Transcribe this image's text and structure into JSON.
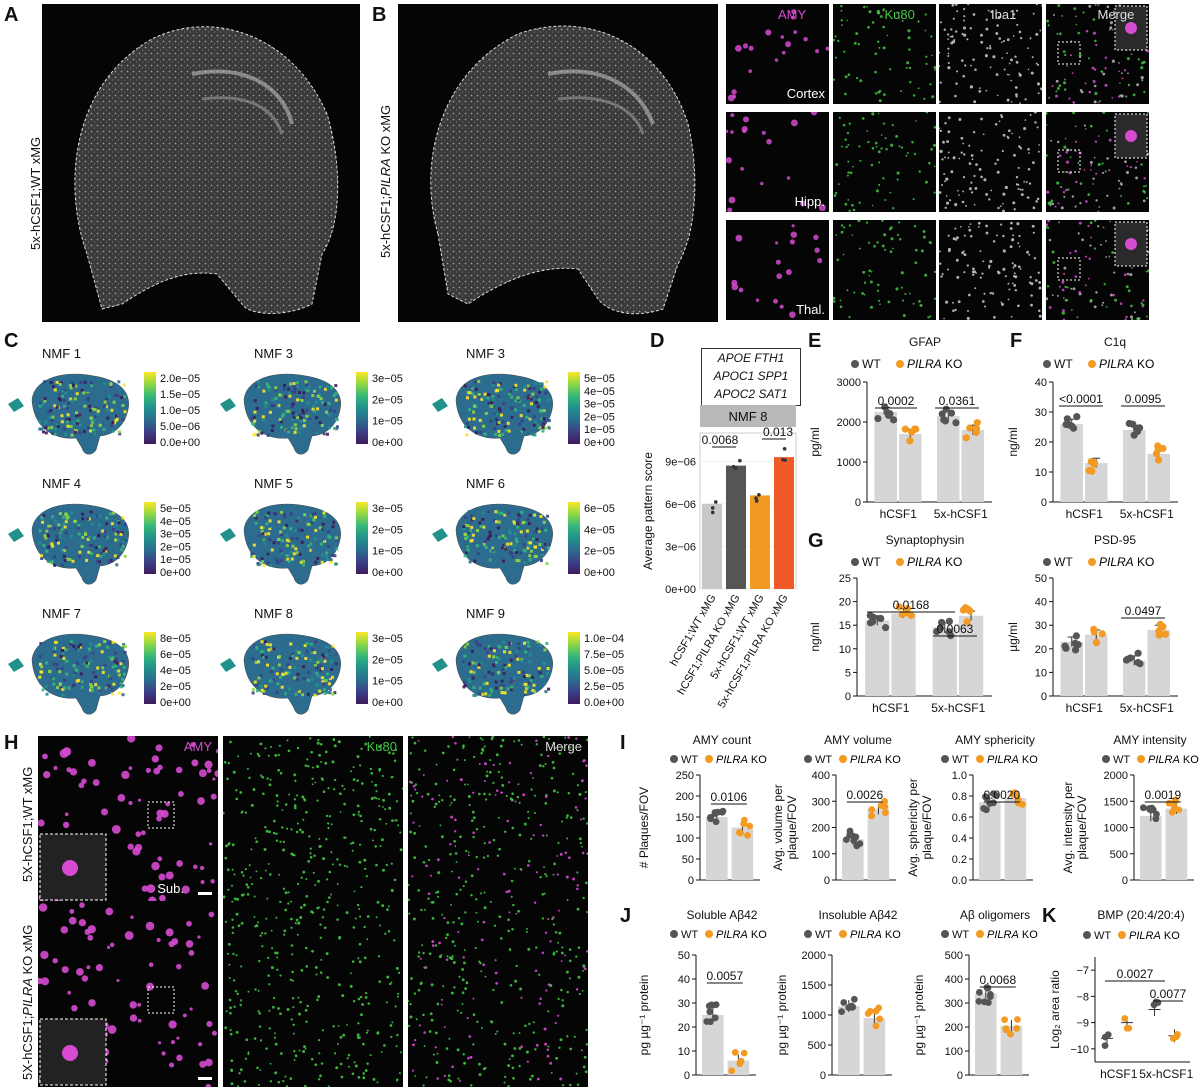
{
  "panels": {
    "A": {
      "label": "A",
      "ylabel": "5x-hCSF1;WT xMG"
    },
    "B": {
      "label": "B",
      "ylabel_pre": "5x-hCSF1;",
      "ylabel_it": "PILRA",
      "ylabel_post": " KO xMG",
      "channels": [
        "AMY",
        "Ku80",
        "Iba1",
        "Merge"
      ],
      "regions": [
        "Cortex",
        "Hipp.",
        "Thal."
      ]
    },
    "C": {
      "label": "C",
      "maps": [
        {
          "title": "NMF 1",
          "ticks": [
            "2.0e−05",
            "1.5e−05",
            "1.0e−05",
            "5.0e−06",
            "0.0e+00"
          ]
        },
        {
          "title": "NMF 3",
          "ticks": [
            "3e−05",
            "2e−05",
            "1e−05",
            "0e+00"
          ]
        },
        {
          "title": "NMF 3",
          "ticks": [
            "5e−05",
            "4e−05",
            "3e−05",
            "2e−05",
            "1e−05",
            "0e+00"
          ]
        },
        {
          "title": "NMF 4",
          "ticks": [
            "5e−05",
            "4e−05",
            "3e−05",
            "2e−05",
            "1e−05",
            "0e+00"
          ]
        },
        {
          "title": "NMF 5",
          "ticks": [
            "3e−05",
            "2e−05",
            "1e−05",
            "0e+00"
          ]
        },
        {
          "title": "NMF 6",
          "ticks": [
            "6e−05",
            "4e−05",
            "2e−05",
            "0e+00"
          ]
        },
        {
          "title": "NMF 7",
          "ticks": [
            "8e−05",
            "6e−05",
            "4e−05",
            "2e−05",
            "0e+00"
          ]
        },
        {
          "title": "NMF 8",
          "ticks": [
            "3e−05",
            "2e−05",
            "1e−05",
            "0e+00"
          ]
        },
        {
          "title": "NMF 9",
          "ticks": [
            "1.0e−04",
            "7.5e−05",
            "5.0e−05",
            "2.5e−05",
            "0.0e+00"
          ]
        }
      ]
    },
    "D": {
      "label": "D",
      "genes": [
        "APOE  FTH1",
        "APOC1  SPP1",
        "APOC2  SAT1"
      ],
      "strip": "NMF 8",
      "ylabel": "Average pattern score",
      "p1": "0.0068",
      "p2": "0.013",
      "yticks": [
        "9e−06",
        "6e−06",
        "3e−06",
        "0e+00"
      ]
    },
    "E": {
      "label": "E"
    },
    "F": {
      "label": "F"
    },
    "G": {
      "label": "G"
    },
    "H": {
      "label": "H",
      "row1": "5X-hCSF1;WT xMG",
      "row2_pre": "5X-hCSF1;",
      "row2_it": "PILRA",
      "row2_post": " KO xMG",
      "channels": [
        "AMY",
        "Ku80",
        "Merge"
      ],
      "region": "Sub."
    },
    "I": {
      "label": "I"
    },
    "J": {
      "label": "J"
    },
    "K": {
      "label": "K"
    }
  },
  "chart_data": [
    {
      "id": "D",
      "type": "bar",
      "categories": [
        "hCSF1;WT xMG",
        "hCSF1;PILRA KO xMG",
        "5x-hCSF1;WT xMG",
        "5x-hCSF1;PILRA KO xMG"
      ],
      "values": [
        6e-06,
        8.7e-06,
        6.6e-06,
        9.3e-06
      ],
      "ylim": [
        0,
        1.1e-05
      ],
      "ylabel": "Average pattern score",
      "title": "NMF 8",
      "colors": [
        "#c8c8c8",
        "#555555",
        "#f39a22",
        "#f05a28"
      ]
    },
    {
      "id": "E",
      "type": "bar",
      "title": "GFAP",
      "ylabel": "pg/ml",
      "ylim": [
        0,
        3000
      ],
      "yticks": [
        0,
        1000,
        2000,
        3000
      ],
      "categories": [
        "hCSF1",
        "5x-hCSF1"
      ],
      "series": [
        {
          "name": "WT",
          "values": [
            2250,
            2150
          ]
        },
        {
          "name": "PILRA KO",
          "values": [
            1700,
            1800
          ]
        }
      ],
      "pvalues": [
        "0.0002",
        "0.0361"
      ]
    },
    {
      "id": "F",
      "type": "bar",
      "title": "C1q",
      "ylabel": "ng/ml",
      "ylim": [
        0,
        40
      ],
      "yticks": [
        0,
        10,
        20,
        30,
        40
      ],
      "categories": [
        "hCSF1",
        "5x-hCSF1"
      ],
      "series": [
        {
          "name": "WT",
          "values": [
            26,
            24
          ]
        },
        {
          "name": "PILRA KO",
          "values": [
            13,
            16
          ]
        }
      ],
      "pvalues": [
        "<0.0001",
        "0.0095"
      ]
    },
    {
      "id": "G1",
      "type": "bar",
      "title": "Synaptophysin",
      "ylabel": "ng/ml",
      "ylim": [
        0,
        25
      ],
      "yticks": [
        0,
        5,
        10,
        15,
        20,
        25
      ],
      "categories": [
        "hCSF1",
        "5x-hCSF1"
      ],
      "series": [
        {
          "name": "WT",
          "values": [
            16,
            14.5
          ]
        },
        {
          "name": "PILRA KO",
          "values": [
            17.5,
            17
          ]
        }
      ],
      "pvalues": [
        "0.0168",
        "0.0063"
      ]
    },
    {
      "id": "G2",
      "type": "bar",
      "title": "PSD-95",
      "ylabel": "µg/ml",
      "ylim": [
        0,
        50
      ],
      "yticks": [
        0,
        10,
        20,
        30,
        40,
        50
      ],
      "categories": [
        "hCSF1",
        "5x-hCSF1"
      ],
      "series": [
        {
          "name": "WT",
          "values": [
            23,
            15
          ]
        },
        {
          "name": "PILRA KO",
          "values": [
            26,
            28
          ]
        }
      ],
      "pvalues": [
        "0.0497"
      ]
    },
    {
      "id": "I1",
      "type": "bar",
      "title": "AMY count",
      "ylabel": "# Plaques/FOV",
      "ylim": [
        0,
        250
      ],
      "yticks": [
        0,
        50,
        100,
        150,
        200,
        250
      ],
      "series": [
        {
          "name": "WT",
          "values": [
            150
          ]
        },
        {
          "name": "PILRA KO",
          "values": [
            125
          ]
        }
      ],
      "pvalues": [
        "0.0106"
      ]
    },
    {
      "id": "I2",
      "type": "bar",
      "title": "AMY volume",
      "ylabel": "Avg. volume per plaque/FOV",
      "ylim": [
        0,
        400
      ],
      "yticks": [
        0,
        100,
        200,
        300,
        400
      ],
      "series": [
        {
          "name": "WT",
          "values": [
            155
          ]
        },
        {
          "name": "PILRA KO",
          "values": [
            270
          ]
        }
      ],
      "pvalues": [
        "0.0026"
      ]
    },
    {
      "id": "I3",
      "type": "bar",
      "title": "AMY sphericity",
      "ylabel": "Avg. sphericity per plaque/FOV",
      "ylim": [
        0,
        1.0
      ],
      "yticks": [
        0.0,
        0.2,
        0.4,
        0.6,
        0.8,
        1.0
      ],
      "series": [
        {
          "name": "WT",
          "values": [
            0.74
          ]
        },
        {
          "name": "PILRA KO",
          "values": [
            0.78
          ]
        }
      ],
      "pvalues": [
        "0.0020"
      ]
    },
    {
      "id": "I4",
      "type": "bar",
      "title": "AMY intensity",
      "ylabel": "Avg. intensity per plaque/FOV",
      "ylim": [
        0,
        2000
      ],
      "yticks": [
        0,
        500,
        1000,
        1500,
        2000
      ],
      "series": [
        {
          "name": "WT",
          "values": [
            1220
          ]
        },
        {
          "name": "PILRA KO",
          "values": [
            1360
          ]
        }
      ],
      "pvalues": [
        "0.0019"
      ]
    },
    {
      "id": "J1",
      "type": "bar",
      "title": "Soluble Aβ42",
      "ylabel": "pg µg⁻¹ protein",
      "ylim": [
        0,
        50
      ],
      "yticks": [
        0,
        10,
        20,
        30,
        40,
        50
      ],
      "series": [
        {
          "name": "WT",
          "values": [
            25
          ]
        },
        {
          "name": "PILRA KO",
          "values": [
            6
          ]
        }
      ],
      "pvalues": [
        "0.0057"
      ]
    },
    {
      "id": "J2",
      "type": "bar",
      "title": "Insoluble Aβ42",
      "ylabel": "pg µg⁻¹ protein",
      "ylim": [
        0,
        2000
      ],
      "yticks": [
        0,
        500,
        1000,
        1500,
        2000
      ],
      "series": [
        {
          "name": "WT",
          "values": [
            1150
          ]
        },
        {
          "name": "PILRA KO",
          "values": [
            950
          ]
        }
      ],
      "pvalues": []
    },
    {
      "id": "J3",
      "type": "bar",
      "title": "Aβ oligomers",
      "ylabel": "pg µg⁻¹ protein",
      "ylim": [
        0,
        500
      ],
      "yticks": [
        0,
        100,
        200,
        300,
        400,
        500
      ],
      "series": [
        {
          "name": "WT",
          "values": [
            340
          ]
        },
        {
          "name": "PILRA KO",
          "values": [
            205
          ]
        }
      ],
      "pvalues": [
        "0.0068"
      ]
    },
    {
      "id": "K",
      "type": "scatter",
      "title": "BMP (20:4/20:4)",
      "ylabel": "Log₂ area ratio",
      "ylim": [
        -10.5,
        -6.5
      ],
      "yticks": [
        -10,
        -9,
        -8,
        -7
      ],
      "categories": [
        "hCSF1",
        "5x-hCSF1"
      ],
      "series": [
        {
          "name": "WT",
          "values": [
            -9.6,
            -8.5
          ]
        },
        {
          "name": "PILRA KO",
          "values": [
            -9.0,
            -9.5
          ]
        }
      ],
      "pvalues": [
        "0.0027",
        "0.0077"
      ]
    }
  ],
  "legend": {
    "wt": "WT",
    "ko_it": "PILRA",
    "ko_post": " KO",
    "ko_full": "PILRA KO"
  },
  "colors": {
    "wt": "#555555",
    "ko": "#f39a22",
    "bar": "#d6d6d6",
    "amy": "#d64bd1",
    "ku80": "#43c743"
  }
}
